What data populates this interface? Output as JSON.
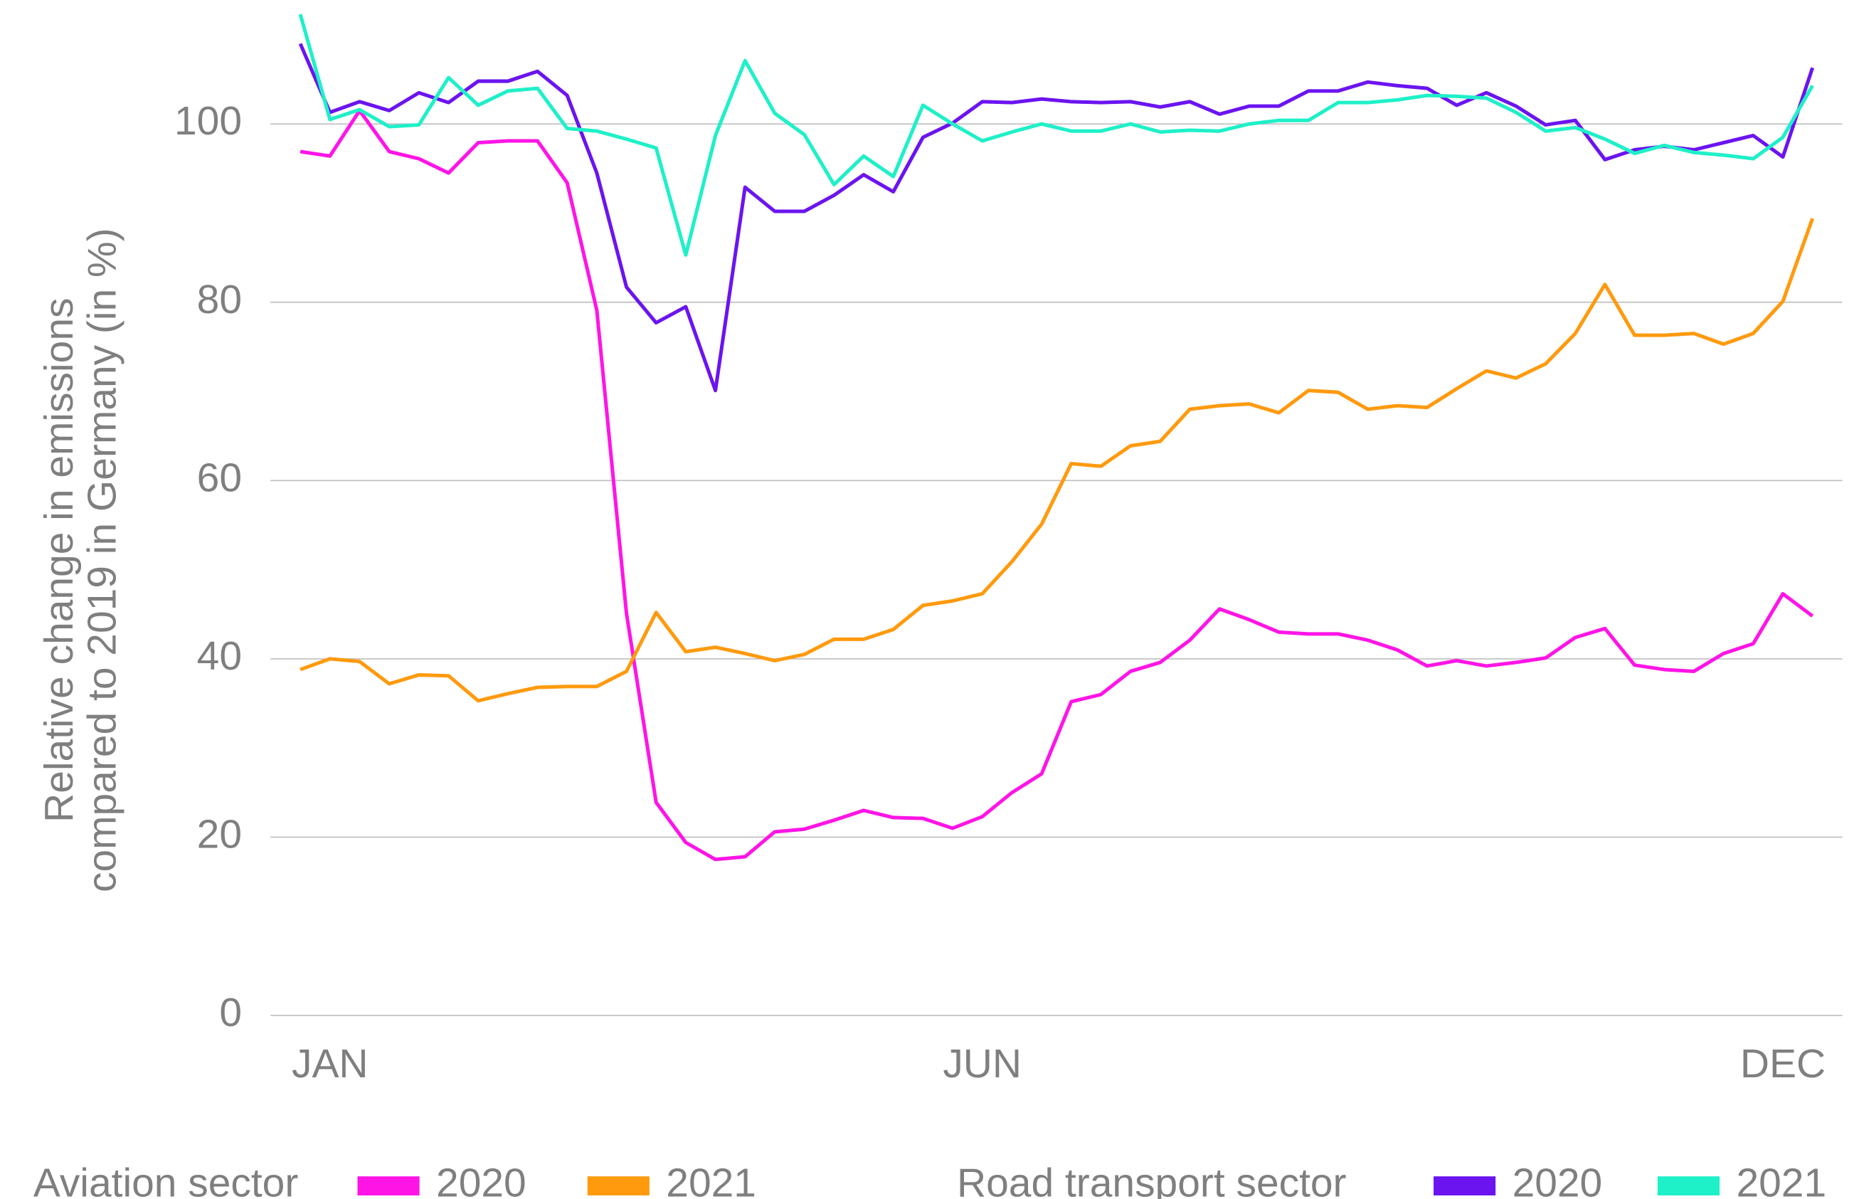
{
  "chart_data": {
    "type": "line",
    "y_label": [
      "Relative change in emissions",
      "compared to 2019 in Germany (in %)"
    ],
    "categories": [
      null,
      "JAN",
      null,
      null,
      null,
      null,
      null,
      null,
      null,
      null,
      null,
      null,
      null,
      null,
      null,
      null,
      null,
      null,
      null,
      null,
      null,
      null,
      null,
      "JUN",
      null,
      null,
      null,
      null,
      null,
      null,
      null,
      null,
      null,
      null,
      null,
      null,
      null,
      null,
      null,
      null,
      null,
      null,
      null,
      null,
      null,
      null,
      null,
      null,
      null,
      null,
      "DEC",
      null
    ],
    "ylim": [
      0,
      112.5
    ],
    "yticks": [
      0,
      20,
      40,
      60,
      80,
      100
    ],
    "grid": true,
    "series_groups": [
      {
        "name": "Aviation sector",
        "series": [
          {
            "name": "2020",
            "color": "#ff14e6",
            "values": [
              96.9,
              96.4,
              101.5,
              96.9,
              96.1,
              94.5,
              97.9,
              98.1,
              98.1,
              93.4,
              79.1,
              45.1,
              23.9,
              19.4,
              17.5,
              17.8,
              20.6,
              20.9,
              21.9,
              23.0,
              22.2,
              22.1,
              21.0,
              22.3,
              25.0,
              27.1,
              35.2,
              36.0,
              38.6,
              39.6,
              42.1,
              45.6,
              44.4,
              43.0,
              42.8,
              42.8,
              42.1,
              41.0,
              39.2,
              39.8,
              39.2,
              39.6,
              40.1,
              42.4,
              43.4,
              39.3,
              38.8,
              38.6,
              40.6,
              41.7,
              47.3,
              44.8
            ]
          },
          {
            "name": "2021",
            "color": "#ff9a0e",
            "values": [
              38.8,
              40.0,
              39.7,
              37.2,
              38.2,
              38.1,
              35.3,
              36.1,
              36.8,
              36.9,
              36.9,
              38.6,
              45.2,
              40.8,
              41.3,
              40.6,
              39.8,
              40.5,
              42.2,
              42.2,
              43.3,
              46.0,
              46.5,
              47.3,
              50.9,
              55.1,
              61.9,
              61.6,
              63.9,
              64.4,
              68.0,
              68.4,
              68.6,
              67.6,
              70.1,
              69.9,
              68.0,
              68.4,
              68.2,
              70.3,
              72.3,
              71.5,
              73.1,
              76.5,
              82.0,
              76.3,
              76.3,
              76.5,
              75.3,
              76.5,
              80.1,
              89.4
            ]
          }
        ]
      },
      {
        "name": "Road transport sector",
        "series": [
          {
            "name": "2020",
            "color": "#6b14f0",
            "values": [
              109.0,
              101.3,
              102.5,
              101.5,
              103.5,
              102.4,
              104.8,
              104.8,
              105.9,
              103.2,
              94.5,
              81.7,
              77.7,
              79.5,
              70.1,
              92.9,
              90.2,
              90.2,
              92.0,
              94.3,
              92.4,
              98.5,
              100.1,
              102.5,
              102.4,
              102.8,
              102.5,
              102.4,
              102.5,
              101.9,
              102.5,
              101.1,
              102.0,
              102.0,
              103.7,
              103.7,
              104.7,
              104.3,
              104.0,
              102.1,
              103.5,
              102.0,
              99.9,
              100.4,
              96.0,
              97.1,
              97.5,
              97.1,
              97.9,
              98.7,
              96.3,
              106.3
            ]
          },
          {
            "name": "2021",
            "color": "#1ef0c8",
            "values": [
              112.3,
              100.5,
              101.6,
              99.7,
              99.9,
              105.2,
              102.1,
              103.7,
              104.0,
              99.5,
              99.2,
              98.3,
              97.3,
              85.3,
              98.7,
              107.1,
              101.2,
              98.8,
              93.2,
              96.4,
              94.1,
              102.1,
              100.0,
              98.1,
              99.1,
              100.0,
              99.2,
              99.2,
              100.0,
              99.1,
              99.3,
              99.2,
              100.0,
              100.4,
              100.4,
              102.4,
              102.4,
              102.7,
              103.2,
              103.1,
              102.9,
              101.3,
              99.2,
              99.6,
              98.3,
              96.7,
              97.6,
              96.8,
              96.5,
              96.1,
              98.5,
              104.3
            ]
          }
        ]
      }
    ]
  }
}
